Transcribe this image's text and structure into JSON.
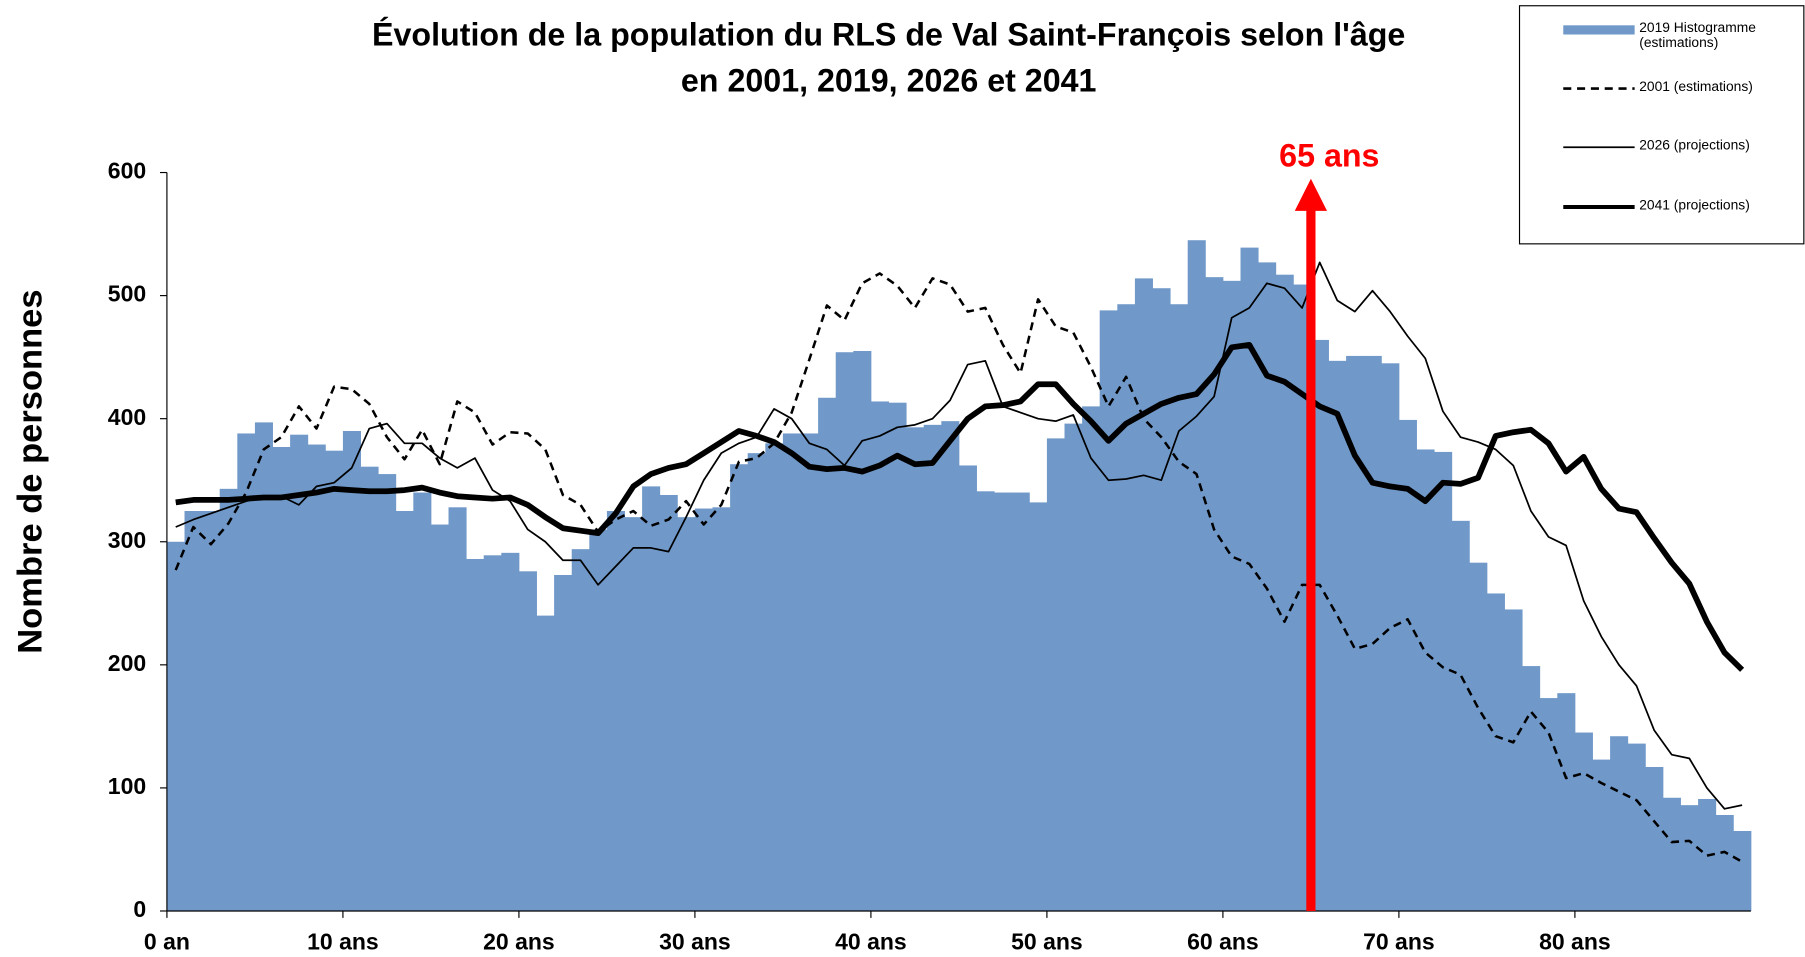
{
  "chart_data": {
    "type": "bar",
    "title": [
      "Évolution de la population du RLS de Val Saint-François selon l'âge",
      "en 2001, 2019, 2026 et 2041"
    ],
    "y_label": "Nombre de personnes",
    "xlim": [
      0,
      90
    ],
    "ylim": [
      0,
      600
    ],
    "xticks": [
      {
        "value": 0,
        "label": "0 an"
      },
      {
        "value": 10,
        "label": "10 ans"
      },
      {
        "value": 20,
        "label": "20 ans"
      },
      {
        "value": 30,
        "label": "30 ans"
      },
      {
        "value": 40,
        "label": "40 ans"
      },
      {
        "value": 50,
        "label": "50 ans"
      },
      {
        "value": 60,
        "label": "60 ans"
      },
      {
        "value": 70,
        "label": "70 ans"
      },
      {
        "value": 80,
        "label": "80 ans"
      }
    ],
    "yticks": [
      0,
      100,
      200,
      300,
      400,
      500,
      600
    ],
    "x": [
      0.5,
      1.5,
      2.5,
      3.5,
      4.5,
      5.5,
      6.5,
      7.5,
      8.5,
      9.5,
      10.5,
      11.5,
      12.5,
      13.5,
      14.5,
      15.5,
      16.5,
      17.5,
      18.5,
      19.5,
      20.5,
      21.5,
      22.5,
      23.5,
      24.5,
      25.5,
      26.5,
      27.5,
      28.5,
      29.5,
      30.5,
      31.5,
      32.5,
      33.5,
      34.5,
      35.5,
      36.5,
      37.5,
      38.5,
      39.5,
      40.5,
      41.5,
      42.5,
      43.5,
      44.5,
      45.5,
      46.5,
      47.5,
      48.5,
      49.5,
      50.5,
      51.5,
      52.5,
      53.5,
      54.5,
      55.5,
      56.5,
      57.5,
      58.5,
      59.5,
      60.5,
      61.5,
      62.5,
      63.5,
      64.5,
      65.5,
      66.5,
      67.5,
      68.5,
      69.5,
      70.5,
      71.5,
      72.5,
      73.5,
      74.5,
      75.5,
      76.5,
      77.5,
      78.5,
      79.5,
      80.5,
      81.5,
      82.5,
      83.5,
      84.5,
      85.5,
      86.5,
      87.5,
      88.5,
      89.5
    ],
    "series": [
      {
        "name": "2019 Histogramme (estimations)",
        "kind": "bar",
        "color": "#7099c9",
        "values": [
          300,
          325,
          325,
          343,
          388,
          397,
          377,
          387,
          379,
          374,
          390,
          361,
          355,
          325,
          340,
          314,
          328,
          286,
          289,
          291,
          276,
          240,
          273,
          294,
          310,
          325,
          320,
          345,
          338,
          320,
          327,
          328,
          363,
          372,
          380,
          388,
          388,
          417,
          454,
          455,
          414,
          413,
          393,
          395,
          398,
          362,
          341,
          340,
          340,
          332,
          384,
          396,
          410,
          488,
          493,
          514,
          506,
          493,
          545,
          515,
          512,
          539,
          527,
          517,
          509,
          464,
          447,
          451,
          451,
          445,
          399,
          375,
          373,
          317,
          283,
          258,
          245,
          199,
          173,
          177,
          145,
          123,
          142,
          136,
          117,
          92,
          86,
          91,
          78,
          65
        ]
      },
      {
        "name": "2001 (estimations)",
        "kind": "line",
        "color": "#000000",
        "linewidth": 2.2,
        "dash": "dashed",
        "values": [
          277,
          312,
          298,
          315,
          340,
          375,
          385,
          410,
          392,
          426,
          424,
          412,
          385,
          367,
          391,
          363,
          414,
          405,
          379,
          389,
          388,
          375,
          338,
          330,
          308,
          318,
          325,
          313,
          318,
          333,
          314,
          330,
          365,
          368,
          380,
          405,
          448,
          492,
          480,
          510,
          518,
          508,
          490,
          514,
          509,
          487,
          490,
          460,
          437,
          497,
          475,
          470,
          442,
          410,
          434,
          400,
          385,
          365,
          355,
          310,
          288,
          282,
          262,
          235,
          265,
          265,
          240,
          213,
          217,
          230,
          237,
          210,
          198,
          192,
          165,
          142,
          137,
          162,
          145,
          108,
          112,
          104,
          97,
          90,
          73,
          56,
          57,
          45,
          48,
          40
        ]
      },
      {
        "name": "2026 (projections)",
        "kind": "line",
        "color": "#000000",
        "linewidth": 1.5,
        "dash": "solid",
        "values": [
          312,
          318,
          323,
          328,
          333,
          336,
          337,
          330,
          345,
          348,
          360,
          392,
          396,
          380,
          380,
          368,
          360,
          368,
          342,
          333,
          310,
          300,
          285,
          285,
          265,
          280,
          295,
          295,
          292,
          320,
          350,
          372,
          380,
          385,
          408,
          400,
          380,
          375,
          362,
          382,
          386,
          393,
          395,
          400,
          415,
          444,
          447,
          410,
          405,
          400,
          398,
          403,
          368,
          350,
          351,
          354,
          350,
          390,
          402,
          418,
          482,
          490,
          510,
          506,
          490,
          527,
          496,
          487,
          504,
          487,
          467,
          449,
          406,
          385,
          381,
          375,
          362,
          325,
          304,
          297,
          252,
          223,
          200,
          183,
          147,
          127,
          124,
          100,
          83,
          86
        ]
      },
      {
        "name": "2041 (projections)",
        "kind": "line",
        "color": "#000000",
        "linewidth": 5,
        "dash": "solid",
        "values": [
          332,
          334,
          334,
          334,
          335,
          336,
          336,
          338,
          340,
          343,
          342,
          341,
          341,
          342,
          344,
          340,
          337,
          336,
          335,
          336,
          330,
          320,
          311,
          309,
          307,
          323,
          345,
          355,
          360,
          363,
          372,
          381,
          390,
          386,
          381,
          372,
          361,
          359,
          360,
          357,
          362,
          370,
          363,
          364,
          382,
          400,
          410,
          411,
          414,
          428,
          428,
          412,
          398,
          382,
          396,
          404,
          412,
          417,
          420,
          436,
          458,
          460,
          435,
          430,
          420,
          410,
          404,
          370,
          348,
          345,
          343,
          333,
          348,
          347,
          352,
          386,
          389,
          391,
          380,
          357,
          369,
          343,
          327,
          324,
          303,
          283,
          266,
          235,
          210,
          196
        ]
      }
    ],
    "annotation": {
      "text": "65 ans",
      "x": 65,
      "y": 595,
      "color": "#ff0000"
    },
    "legend": "upper right"
  }
}
